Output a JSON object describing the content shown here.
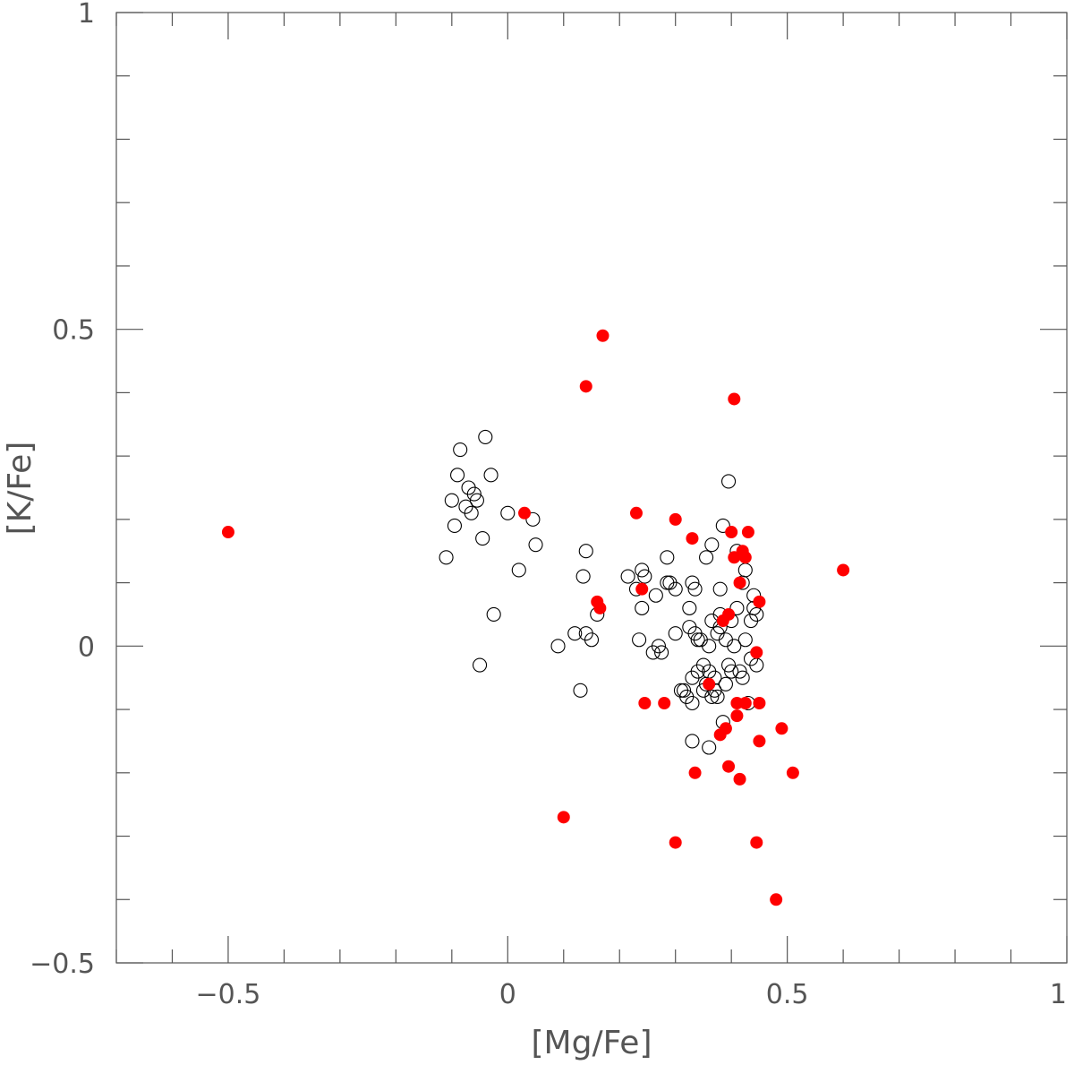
{
  "chart_data": {
    "type": "scatter",
    "title": "",
    "xlabel": "[Mg/Fe]",
    "ylabel": "[K/Fe]",
    "xlim": [
      -0.7,
      1.0
    ],
    "ylim": [
      -0.5,
      1.0
    ],
    "x_ticks": [
      -0.5,
      0,
      0.5,
      1
    ],
    "x_tick_labels": [
      "−0.5",
      "0",
      "0.5",
      "1"
    ],
    "y_ticks": [
      -0.5,
      0,
      0.5,
      1
    ],
    "y_tick_labels": [
      "−0.5",
      "0",
      "0.5",
      "1"
    ],
    "x_minor_step": 0.1,
    "y_minor_step": 0.1,
    "grid": false,
    "legend": "none",
    "series": [
      {
        "marker": "open-circle",
        "color": "#000000",
        "points": [
          [
            -0.11,
            0.14
          ],
          [
            -0.1,
            0.23
          ],
          [
            -0.095,
            0.19
          ],
          [
            -0.09,
            0.27
          ],
          [
            -0.085,
            0.31
          ],
          [
            -0.075,
            0.22
          ],
          [
            -0.07,
            0.25
          ],
          [
            -0.065,
            0.21
          ],
          [
            -0.06,
            0.24
          ],
          [
            -0.055,
            0.23
          ],
          [
            -0.045,
            0.17
          ],
          [
            -0.05,
            -0.03
          ],
          [
            -0.04,
            0.33
          ],
          [
            -0.03,
            0.27
          ],
          [
            -0.025,
            0.05
          ],
          [
            0.0,
            0.21
          ],
          [
            0.02,
            0.12
          ],
          [
            0.045,
            0.2
          ],
          [
            0.05,
            0.16
          ],
          [
            0.09,
            0.0
          ],
          [
            0.12,
            0.02
          ],
          [
            0.13,
            -0.07
          ],
          [
            0.135,
            0.11
          ],
          [
            0.14,
            0.15
          ],
          [
            0.14,
            0.02
          ],
          [
            0.15,
            0.01
          ],
          [
            0.16,
            0.05
          ],
          [
            0.215,
            0.11
          ],
          [
            0.23,
            0.09
          ],
          [
            0.235,
            0.01
          ],
          [
            0.24,
            0.12
          ],
          [
            0.24,
            0.06
          ],
          [
            0.245,
            0.11
          ],
          [
            0.26,
            -0.01
          ],
          [
            0.265,
            0.08
          ],
          [
            0.27,
            0.0
          ],
          [
            0.275,
            -0.01
          ],
          [
            0.285,
            0.14
          ],
          [
            0.285,
            0.1
          ],
          [
            0.3,
            0.09
          ],
          [
            0.3,
            0.02
          ],
          [
            0.31,
            -0.07
          ],
          [
            0.315,
            -0.07
          ],
          [
            0.32,
            -0.08
          ],
          [
            0.325,
            0.06
          ],
          [
            0.325,
            0.03
          ],
          [
            0.33,
            -0.05
          ],
          [
            0.33,
            0.1
          ],
          [
            0.33,
            -0.09
          ],
          [
            0.335,
            0.09
          ],
          [
            0.335,
            0.02
          ],
          [
            0.34,
            -0.04
          ],
          [
            0.34,
            0.01
          ],
          [
            0.345,
            0.01
          ],
          [
            0.35,
            -0.03
          ],
          [
            0.35,
            -0.07
          ],
          [
            0.355,
            0.14
          ],
          [
            0.355,
            -0.06
          ],
          [
            0.36,
            0.0
          ],
          [
            0.36,
            -0.04
          ],
          [
            0.365,
            0.16
          ],
          [
            0.365,
            0.04
          ],
          [
            0.37,
            -0.05
          ],
          [
            0.37,
            -0.07
          ],
          [
            0.375,
            0.02
          ],
          [
            0.375,
            -0.08
          ],
          [
            0.38,
            0.09
          ],
          [
            0.38,
            0.03
          ],
          [
            0.385,
            0.19
          ],
          [
            0.385,
            -0.12
          ],
          [
            0.39,
            -0.06
          ],
          [
            0.39,
            0.01
          ],
          [
            0.395,
            0.26
          ],
          [
            0.395,
            -0.03
          ],
          [
            0.4,
            0.04
          ],
          [
            0.4,
            -0.04
          ],
          [
            0.405,
            0.0
          ],
          [
            0.41,
            0.15
          ],
          [
            0.41,
            0.06
          ],
          [
            0.415,
            -0.04
          ],
          [
            0.42,
            0.1
          ],
          [
            0.42,
            -0.05
          ],
          [
            0.425,
            0.12
          ],
          [
            0.425,
            0.01
          ],
          [
            0.43,
            -0.09
          ],
          [
            0.435,
            0.04
          ],
          [
            0.435,
            -0.02
          ],
          [
            0.44,
            0.06
          ],
          [
            0.44,
            0.08
          ],
          [
            0.445,
            0.05
          ],
          [
            0.445,
            -0.03
          ],
          [
            0.33,
            -0.15
          ],
          [
            0.36,
            -0.16
          ],
          [
            0.365,
            -0.08
          ],
          [
            0.29,
            0.1
          ],
          [
            0.38,
            0.05
          ]
        ]
      },
      {
        "marker": "filled-circle",
        "color": "#ff0000",
        "points": [
          [
            -0.5,
            0.18
          ],
          [
            0.03,
            0.21
          ],
          [
            0.1,
            -0.27
          ],
          [
            0.14,
            0.41
          ],
          [
            0.16,
            0.07
          ],
          [
            0.165,
            0.06
          ],
          [
            0.17,
            0.49
          ],
          [
            0.23,
            0.21
          ],
          [
            0.24,
            0.09
          ],
          [
            0.245,
            -0.09
          ],
          [
            0.28,
            -0.09
          ],
          [
            0.3,
            -0.31
          ],
          [
            0.3,
            0.2
          ],
          [
            0.33,
            0.17
          ],
          [
            0.335,
            -0.2
          ],
          [
            0.36,
            -0.06
          ],
          [
            0.38,
            -0.14
          ],
          [
            0.385,
            0.04
          ],
          [
            0.39,
            -0.13
          ],
          [
            0.395,
            0.05
          ],
          [
            0.395,
            -0.19
          ],
          [
            0.4,
            0.18
          ],
          [
            0.405,
            0.14
          ],
          [
            0.405,
            0.39
          ],
          [
            0.41,
            -0.09
          ],
          [
            0.41,
            -0.11
          ],
          [
            0.415,
            0.1
          ],
          [
            0.415,
            -0.21
          ],
          [
            0.42,
            0.15
          ],
          [
            0.425,
            -0.09
          ],
          [
            0.425,
            0.14
          ],
          [
            0.43,
            0.18
          ],
          [
            0.445,
            -0.31
          ],
          [
            0.445,
            -0.01
          ],
          [
            0.45,
            -0.15
          ],
          [
            0.45,
            0.07
          ],
          [
            0.45,
            -0.09
          ],
          [
            0.48,
            -0.4
          ],
          [
            0.49,
            -0.13
          ],
          [
            0.51,
            -0.2
          ],
          [
            0.6,
            0.12
          ]
        ]
      }
    ]
  }
}
